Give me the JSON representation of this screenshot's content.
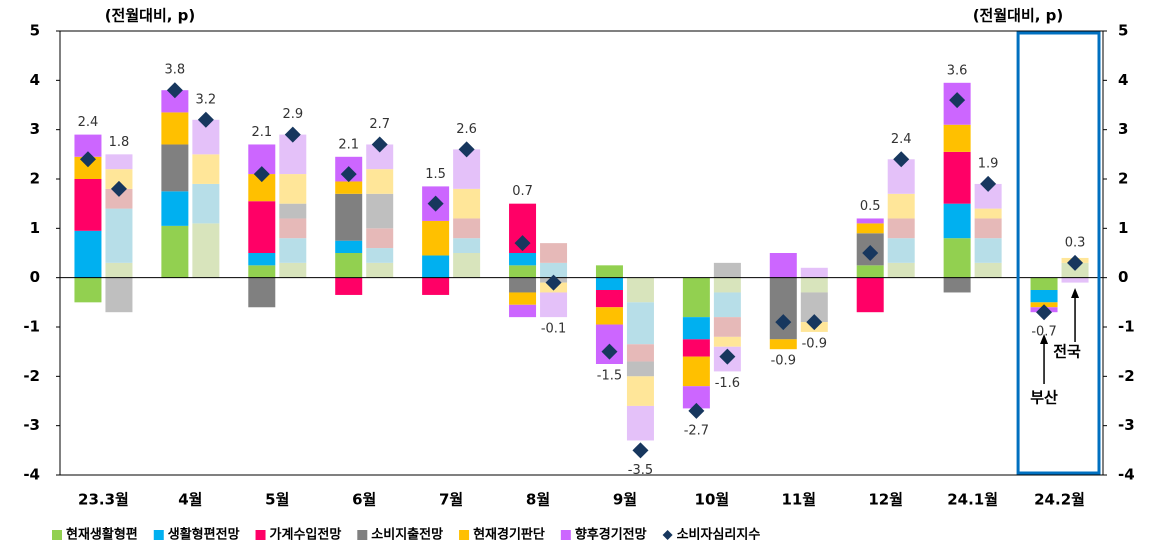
{
  "chart_data": {
    "type": "paired_stacked_bar",
    "y_label": "(전월대비, p)",
    "y2_label": "(전월대비, p)",
    "categories": [
      "23.3월",
      "4월",
      "5월",
      "6월",
      "7월",
      "8월",
      "9월",
      "10월",
      "11월",
      "12월",
      "24.1월",
      "24.2월"
    ],
    "ylim": [
      -4,
      5
    ],
    "yticks": [
      -4,
      -3,
      -2,
      -1,
      0,
      1,
      2,
      3,
      4,
      5
    ],
    "y2lim": [
      -4,
      5
    ],
    "y2ticks": [
      -4,
      -3,
      -2,
      -1,
      0,
      1,
      2,
      3,
      4,
      5
    ],
    "series": [
      {
        "name": "현재생활형편",
        "color": "#92d050",
        "light_color": "#d8e4bc",
        "values": [
          [
            -0.5,
            0.3
          ],
          [
            1.05,
            1.1
          ],
          [
            0.25,
            0.3
          ],
          [
            0.5,
            0.3
          ],
          [
            0,
            0.5
          ],
          [
            0.25,
            0
          ],
          [
            0.25,
            -0.5
          ],
          [
            -0.8,
            -0.3
          ],
          [
            0,
            -0.3
          ],
          [
            0.25,
            0.3
          ],
          [
            0.8,
            0.3
          ],
          [
            -0.25,
            0.3
          ]
        ]
      },
      {
        "name": "생활형편전망",
        "color": "#00b0f0",
        "light_color": "#b7dee8",
        "values": [
          [
            0.95,
            1.1
          ],
          [
            0.7,
            0.8
          ],
          [
            0.25,
            0.5
          ],
          [
            0.25,
            0.3
          ],
          [
            0.45,
            0.3
          ],
          [
            0.25,
            0.3
          ],
          [
            -0.25,
            -0.85
          ],
          [
            -0.45,
            -0.5
          ],
          [
            0,
            0
          ],
          [
            0,
            0.5
          ],
          [
            0.7,
            0.5
          ],
          [
            -0.25,
            0
          ]
        ]
      },
      {
        "name": "가계수입전망",
        "color": "#ff0066",
        "light_color": "#e6b9b8",
        "values": [
          [
            1.05,
            0.4
          ],
          [
            0,
            0
          ],
          [
            1.05,
            0.4
          ],
          [
            -0.35,
            0.4
          ],
          [
            -0.35,
            0.4
          ],
          [
            1.0,
            0.4
          ],
          [
            -0.35,
            -0.35
          ],
          [
            -0.35,
            -0.4
          ],
          [
            0,
            0
          ],
          [
            -0.7,
            0.4
          ],
          [
            1.05,
            0.4
          ],
          [
            0,
            0
          ]
        ]
      },
      {
        "name": "소비지출전망",
        "color": "#808080",
        "light_color": "#bfbfbf",
        "values": [
          [
            0,
            -0.7
          ],
          [
            0.95,
            0
          ],
          [
            -0.6,
            0.3
          ],
          [
            0.95,
            0.7
          ],
          [
            0,
            0
          ],
          [
            -0.3,
            -0.1
          ],
          [
            0,
            -0.3
          ],
          [
            0,
            0.3
          ],
          [
            -1.25,
            -0.6
          ],
          [
            0.65,
            0
          ],
          [
            -0.3,
            0
          ],
          [
            0,
            0
          ]
        ]
      },
      {
        "name": "현재경기판단",
        "color": "#ffc000",
        "light_color": "#ffe699",
        "values": [
          [
            0.45,
            0.4
          ],
          [
            0.65,
            0.6
          ],
          [
            0.55,
            0.6
          ],
          [
            0.25,
            0.5
          ],
          [
            0.7,
            0.6
          ],
          [
            -0.25,
            -0.2
          ],
          [
            -0.35,
            -0.6
          ],
          [
            -0.6,
            -0.2
          ],
          [
            -0.2,
            -0.2
          ],
          [
            0.2,
            0.5
          ],
          [
            0.55,
            0.2
          ],
          [
            -0.1,
            0.1
          ]
        ]
      },
      {
        "name": "향후경기전망",
        "color": "#cc66ff",
        "light_color": "#e4c1f9",
        "values": [
          [
            0.45,
            0.3
          ],
          [
            0.45,
            0.7
          ],
          [
            0.6,
            0.8
          ],
          [
            0.5,
            0.5
          ],
          [
            0.7,
            0.8
          ],
          [
            -0.25,
            -0.5
          ],
          [
            -0.8,
            -0.7
          ],
          [
            -0.45,
            -0.5
          ],
          [
            0.5,
            0.2
          ],
          [
            0.1,
            0.7
          ],
          [
            0.85,
            0.5
          ],
          [
            -0.1,
            -0.1
          ]
        ]
      },
      {
        "name": "소비자심리지수",
        "color": "#17375e",
        "marker": "diamond",
        "values": [
          [
            2.4,
            1.8
          ],
          [
            3.8,
            3.2
          ],
          [
            2.1,
            2.9
          ],
          [
            2.1,
            2.7
          ],
          [
            1.5,
            2.6
          ],
          [
            0.7,
            -0.1
          ],
          [
            -1.5,
            -3.5
          ],
          [
            -2.7,
            -1.6
          ],
          [
            -0.9,
            -0.9
          ],
          [
            0.5,
            2.4
          ],
          [
            3.6,
            1.9
          ],
          [
            -0.7,
            0.3
          ]
        ]
      }
    ],
    "annotations": [
      "부산",
      "전국"
    ],
    "highlight_color": "#0070c0"
  }
}
